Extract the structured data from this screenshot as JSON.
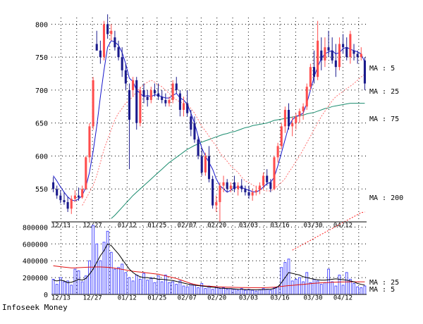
{
  "footer": "Infoseek Money",
  "chart_data": [
    {
      "type": "candlestick",
      "panel": "price",
      "ylim": [
        500,
        810
      ],
      "yticks": [
        550,
        600,
        650,
        700,
        750,
        800
      ],
      "xtick_labels": [
        "12/13",
        "12/27",
        "01/12",
        "01/25",
        "02/07",
        "02/20",
        "03/03",
        "03/16",
        "03/30",
        "04/12"
      ],
      "grid": true,
      "colors": {
        "up": "#ff4d4d",
        "down": "#1a1a8c",
        "ma5": "#1515cc",
        "ma25": "#ff7070",
        "ma75": "#1a8c6e",
        "ma200": "#ff2020"
      },
      "legend": [
        {
          "label": "MA : 5",
          "color": "#1515cc"
        },
        {
          "label": "MA : 25",
          "color": "#ff7070"
        },
        {
          "label": "MA : 75",
          "color": "#1a8c6e"
        },
        {
          "label": "MA : 200",
          "color": "#ff2020"
        }
      ],
      "candles": [
        [
          560,
          568,
          545,
          550
        ],
        [
          550,
          555,
          535,
          540
        ],
        [
          540,
          548,
          528,
          533
        ],
        [
          533,
          545,
          526,
          530
        ],
        [
          530,
          538,
          515,
          520
        ],
        [
          520,
          540,
          512,
          535
        ],
        [
          535,
          548,
          530,
          540
        ],
        [
          540,
          552,
          532,
          537
        ],
        [
          537,
          555,
          535,
          550
        ],
        [
          550,
          600,
          548,
          598
        ],
        [
          598,
          650,
          590,
          645
        ],
        [
          645,
          720,
          640,
          715
        ],
        [
          770,
          790,
          760,
          760
        ],
        [
          760,
          775,
          740,
          750
        ],
        [
          750,
          805,
          745,
          800
        ],
        [
          800,
          815,
          778,
          785
        ],
        [
          785,
          800,
          775,
          790
        ],
        [
          780,
          790,
          760,
          765
        ],
        [
          765,
          775,
          745,
          750
        ],
        [
          750,
          765,
          720,
          730
        ],
        [
          730,
          740,
          700,
          710
        ],
        [
          700,
          710,
          580,
          655
        ],
        [
          700,
          720,
          690,
          715
        ],
        [
          715,
          720,
          640,
          650
        ],
        [
          650,
          705,
          645,
          700
        ],
        [
          700,
          710,
          680,
          690
        ],
        [
          690,
          700,
          675,
          685
        ],
        [
          685,
          705,
          680,
          700
        ],
        [
          700,
          710,
          690,
          695
        ],
        [
          695,
          710,
          685,
          690
        ],
        [
          690,
          700,
          680,
          685
        ],
        [
          685,
          695,
          675,
          680
        ],
        [
          680,
          690,
          675,
          685
        ],
        [
          685,
          715,
          680,
          710
        ],
        [
          710,
          720,
          695,
          700
        ],
        [
          695,
          700,
          660,
          670
        ],
        [
          670,
          690,
          660,
          680
        ],
        [
          680,
          700,
          660,
          665
        ],
        [
          660,
          670,
          630,
          640
        ],
        [
          650,
          660,
          620,
          625
        ],
        [
          625,
          630,
          595,
          600
        ],
        [
          600,
          612,
          570,
          575
        ],
        [
          575,
          605,
          570,
          600
        ],
        [
          600,
          615,
          560,
          565
        ],
        [
          565,
          570,
          520,
          525
        ],
        [
          525,
          540,
          515,
          530
        ],
        [
          530,
          560,
          500,
          555
        ],
        [
          555,
          570,
          545,
          560
        ],
        [
          560,
          565,
          545,
          550
        ],
        [
          550,
          560,
          545,
          555
        ],
        [
          560,
          570,
          545,
          550
        ],
        [
          550,
          560,
          540,
          555
        ],
        [
          555,
          565,
          545,
          550
        ],
        [
          550,
          555,
          540,
          545
        ],
        [
          545,
          555,
          535,
          540
        ],
        [
          540,
          550,
          532,
          545
        ],
        [
          545,
          555,
          540,
          548
        ],
        [
          548,
          560,
          542,
          555
        ],
        [
          555,
          575,
          550,
          570
        ],
        [
          570,
          580,
          555,
          560
        ],
        [
          560,
          565,
          545,
          550
        ],
        [
          550,
          600,
          548,
          598
        ],
        [
          598,
          620,
          590,
          615
        ],
        [
          615,
          650,
          610,
          645
        ],
        [
          645,
          675,
          635,
          670
        ],
        [
          670,
          680,
          640,
          645
        ],
        [
          645,
          660,
          630,
          650
        ],
        [
          650,
          665,
          640,
          660
        ],
        [
          660,
          672,
          650,
          668
        ],
        [
          668,
          680,
          655,
          675
        ],
        [
          675,
          710,
          670,
          705
        ],
        [
          705,
          740,
          700,
          735
        ],
        [
          735,
          760,
          710,
          720
        ],
        [
          720,
          805,
          715,
          775
        ],
        [
          760,
          780,
          730,
          745
        ],
        [
          745,
          780,
          735,
          765
        ],
        [
          765,
          790,
          750,
          760
        ],
        [
          760,
          780,
          740,
          745
        ],
        [
          745,
          770,
          720,
          735
        ],
        [
          735,
          780,
          730,
          770
        ],
        [
          770,
          785,
          755,
          765
        ],
        [
          765,
          780,
          745,
          750
        ],
        [
          750,
          790,
          740,
          785
        ],
        [
          760,
          770,
          745,
          755
        ],
        [
          755,
          760,
          740,
          750
        ],
        [
          750,
          765,
          745,
          755
        ],
        [
          745,
          750,
          700,
          710
        ]
      ],
      "ma5": [
        570,
        562,
        553,
        545,
        538,
        533,
        532,
        535,
        540,
        553,
        575,
        607,
        645,
        690,
        730,
        765,
        775,
        773,
        768,
        757,
        740,
        718,
        713,
        700,
        695,
        690,
        692,
        690,
        693,
        692,
        690,
        688,
        688,
        692,
        695,
        688,
        685,
        678,
        665,
        650,
        630,
        612,
        600,
        590,
        580,
        565,
        555,
        550,
        545,
        548,
        552,
        553,
        552,
        550,
        548,
        546,
        545,
        548,
        553,
        558,
        560,
        568,
        585,
        605,
        625,
        645,
        655,
        660,
        662,
        665,
        680,
        700,
        720,
        735,
        748,
        755,
        758,
        760,
        755,
        757,
        763,
        765,
        762,
        760,
        758,
        755,
        742
      ],
      "ma25": [
        null,
        null,
        null,
        null,
        null,
        null,
        null,
        null,
        525,
        535,
        545,
        555,
        570,
        590,
        610,
        625,
        640,
        655,
        665,
        672,
        680,
        685,
        690,
        698,
        703,
        708,
        712,
        715,
        712,
        708,
        705,
        700,
        695,
        690,
        685,
        682,
        680,
        678,
        672,
        665,
        655,
        645,
        638,
        630,
        622,
        615,
        605,
        598,
        592,
        585,
        580,
        575,
        568,
        562,
        560,
        556,
        553,
        550,
        548,
        547,
        547,
        550,
        555,
        560,
        566,
        575,
        583,
        592,
        600,
        610,
        620,
        630,
        640,
        650,
        660,
        668,
        676,
        684,
        690,
        694,
        698,
        702,
        706,
        710,
        715,
        720,
        724
      ],
      "ma75": [
        null,
        null,
        null,
        null,
        null,
        null,
        null,
        null,
        null,
        null,
        null,
        null,
        null,
        null,
        null,
        null,
        505,
        510,
        516,
        522,
        528,
        534,
        540,
        545,
        550,
        555,
        560,
        565,
        570,
        575,
        580,
        585,
        590,
        594,
        598,
        602,
        606,
        610,
        613,
        616,
        618,
        621,
        623,
        625,
        627,
        629,
        631,
        633,
        634,
        636,
        637,
        639,
        641,
        643,
        644,
        646,
        647,
        648,
        649,
        650,
        652,
        654,
        655,
        656,
        657,
        658,
        659,
        660,
        661,
        662,
        664,
        665,
        666,
        668,
        670,
        672,
        673,
        675,
        676,
        677,
        678,
        679,
        680,
        680,
        680,
        680,
        680
      ],
      "ma200": {
        "start_index": 66,
        "values": [
          457,
          460,
          463,
          466,
          469,
          472,
          475,
          478,
          481,
          484,
          487,
          490,
          493,
          496,
          499,
          502,
          505,
          508,
          511,
          514,
          515
        ]
      }
    },
    {
      "type": "bar",
      "panel": "volume",
      "ylim": [
        0,
        820000
      ],
      "yticks": [
        0,
        200000,
        400000,
        600000,
        800000
      ],
      "xtick_labels": [
        "12/13",
        "12/27",
        "01/12",
        "01/25",
        "02/07",
        "02/20",
        "03/03",
        "03/16",
        "03/30",
        "04/12"
      ],
      "grid": true,
      "colors": {
        "bar": "#4d4dff",
        "ma5": "#000000",
        "ma25": "#e01010"
      },
      "legend": [
        {
          "label": "MA : 25",
          "color": "#e01010"
        },
        {
          "label": "MA : 5",
          "color": "#000000"
        }
      ],
      "values": [
        180000,
        120000,
        200000,
        150000,
        160000,
        110000,
        300000,
        280000,
        150000,
        220000,
        400000,
        820000,
        600000,
        400000,
        620000,
        750000,
        500000,
        300000,
        320000,
        360000,
        260000,
        200000,
        160000,
        230000,
        180000,
        250000,
        170000,
        200000,
        140000,
        220000,
        150000,
        230000,
        140000,
        150000,
        120000,
        160000,
        100000,
        90000,
        130000,
        110000,
        80000,
        130000,
        70000,
        100000,
        60000,
        90000,
        70000,
        80000,
        60000,
        70000,
        60000,
        50000,
        70000,
        50000,
        60000,
        50000,
        40000,
        55000,
        70000,
        60000,
        50000,
        80000,
        90000,
        320000,
        380000,
        420000,
        160000,
        180000,
        200000,
        150000,
        260000,
        140000,
        180000,
        160000,
        120000,
        140000,
        300000,
        150000,
        100000,
        230000,
        110000,
        260000,
        180000,
        130000,
        90000,
        80000,
        100000
      ],
      "ma5": [
        170000,
        160000,
        170000,
        160000,
        140000,
        145000,
        160000,
        180000,
        170000,
        190000,
        240000,
        300000,
        380000,
        460000,
        520000,
        600000,
        580000,
        530000,
        480000,
        420000,
        360000,
        300000,
        260000,
        230000,
        210000,
        200000,
        200000,
        190000,
        190000,
        180000,
        180000,
        175000,
        170000,
        165000,
        155000,
        145000,
        135000,
        125000,
        115000,
        110000,
        105000,
        100000,
        95000,
        90000,
        85000,
        80000,
        75000,
        72000,
        70000,
        68000,
        65000,
        62000,
        60000,
        58000,
        56000,
        55000,
        55000,
        56000,
        58000,
        60000,
        62000,
        70000,
        90000,
        140000,
        200000,
        260000,
        250000,
        240000,
        230000,
        210000,
        200000,
        190000,
        180000,
        175000,
        170000,
        170000,
        175000,
        180000,
        185000,
        180000,
        175000,
        170000,
        160000,
        150000,
        130000,
        120000,
        110000
      ],
      "ma25": [
        340000,
        335000,
        330000,
        325000,
        320000,
        315000,
        315000,
        318000,
        320000,
        322000,
        324000,
        325000,
        326000,
        326000,
        325000,
        322000,
        318000,
        312000,
        305000,
        298000,
        290000,
        282000,
        275000,
        270000,
        265000,
        260000,
        255000,
        250000,
        245000,
        240000,
        230000,
        220000,
        210000,
        200000,
        190000,
        175000,
        160000,
        145000,
        130000,
        120000,
        110000,
        105000,
        100000,
        97000,
        95000,
        92000,
        90000,
        88000,
        86000,
        85000,
        84000,
        83000,
        82000,
        81000,
        80000,
        80000,
        80000,
        80000,
        80000,
        82000,
        84000,
        86000,
        90000,
        95000,
        100000,
        105000,
        108000,
        112000,
        116000,
        120000,
        124000,
        128000,
        132000,
        135000,
        138000,
        140000,
        142000,
        144000,
        146000,
        147000,
        148000,
        149000,
        150000,
        150000,
        150000,
        150000,
        150000
      ]
    }
  ]
}
